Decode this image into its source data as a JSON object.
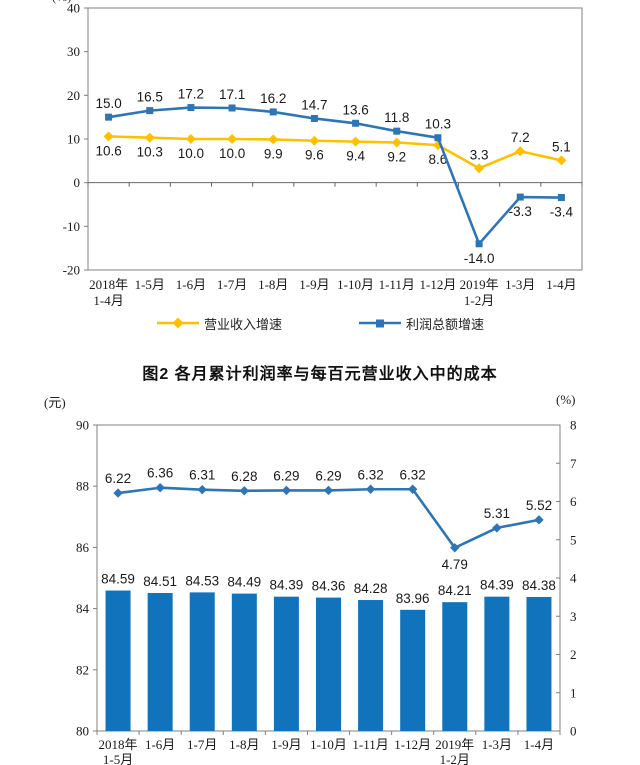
{
  "chart_data": [
    {
      "type": "line",
      "name": "figure1-growth-rates",
      "unit": "(%)",
      "ylim": [
        -20,
        40
      ],
      "yticks": [
        40,
        30,
        20,
        10,
        0,
        -10,
        -20
      ],
      "grid": false,
      "legend_position": "bottom",
      "categories": [
        [
          "2018年",
          "1-4月"
        ],
        [
          "1-5月"
        ],
        [
          "1-6月"
        ],
        [
          "1-7月"
        ],
        [
          "1-8月"
        ],
        [
          "1-9月"
        ],
        [
          "1-10月"
        ],
        [
          "1-11月"
        ],
        [
          "1-12月"
        ],
        [
          "2019年",
          "1-2月"
        ],
        [
          "1-3月"
        ],
        [
          "1-4月"
        ]
      ],
      "series": [
        {
          "name": "营业收入增速",
          "color": "#FFC000",
          "marker": "diamond",
          "decimals": 1,
          "values": [
            10.6,
            10.3,
            10.0,
            10.0,
            9.9,
            9.6,
            9.4,
            9.2,
            8.6,
            3.3,
            7.2,
            5.1
          ],
          "label_side": [
            "below",
            "below",
            "below",
            "below",
            "below",
            "below",
            "below",
            "below",
            "below",
            "above",
            "above",
            "above"
          ]
        },
        {
          "name": "利润总额增速",
          "color": "#2E75B6",
          "marker": "square",
          "decimals": 1,
          "values": [
            15.0,
            16.5,
            17.2,
            17.1,
            16.2,
            14.7,
            13.6,
            11.8,
            10.3,
            -14.0,
            -3.3,
            -3.4
          ],
          "label_side": [
            "above",
            "above",
            "above",
            "above",
            "above",
            "above",
            "above",
            "above",
            "above",
            "below",
            "below",
            "below"
          ]
        }
      ]
    },
    {
      "type": "bar+line",
      "name": "figure2-profit-rate-and-cost",
      "title": "图2  各月累计利润率与每百元营业收入中的成本",
      "left_axis": {
        "unit": "(元)",
        "min": 80,
        "max": 90,
        "ticks": [
          90,
          88,
          86,
          84,
          82,
          80
        ]
      },
      "right_axis": {
        "unit": "(%)",
        "min": 0,
        "max": 8,
        "ticks": [
          8,
          7,
          6,
          5,
          4,
          3,
          2,
          1,
          0
        ]
      },
      "grid": false,
      "categories": [
        [
          "2018年",
          "1-5月"
        ],
        [
          "1-6月"
        ],
        [
          "1-7月"
        ],
        [
          "1-8月"
        ],
        [
          "1-9月"
        ],
        [
          "1-10月"
        ],
        [
          "1-11月"
        ],
        [
          "1-12月"
        ],
        [
          "2019年",
          "1-2月"
        ],
        [
          "1-3月"
        ],
        [
          "1-4月"
        ]
      ],
      "series": [
        {
          "name": "每百元营业收入中的成本",
          "type": "bar",
          "axis": "left",
          "color": "#1173BC",
          "decimals": 2,
          "values": [
            84.59,
            84.51,
            84.53,
            84.49,
            84.39,
            84.36,
            84.28,
            83.96,
            84.21,
            84.39,
            84.38
          ]
        },
        {
          "name": "累计利润率",
          "type": "line",
          "axis": "right",
          "color": "#2E75B6",
          "marker": "diamond",
          "decimals": 2,
          "values": [
            6.22,
            6.36,
            6.31,
            6.28,
            6.29,
            6.29,
            6.32,
            6.32,
            4.79,
            5.31,
            5.52
          ],
          "label_side": [
            "above",
            "above",
            "above",
            "above",
            "above",
            "above",
            "above",
            "above",
            "below",
            "above",
            "above"
          ]
        }
      ]
    }
  ]
}
